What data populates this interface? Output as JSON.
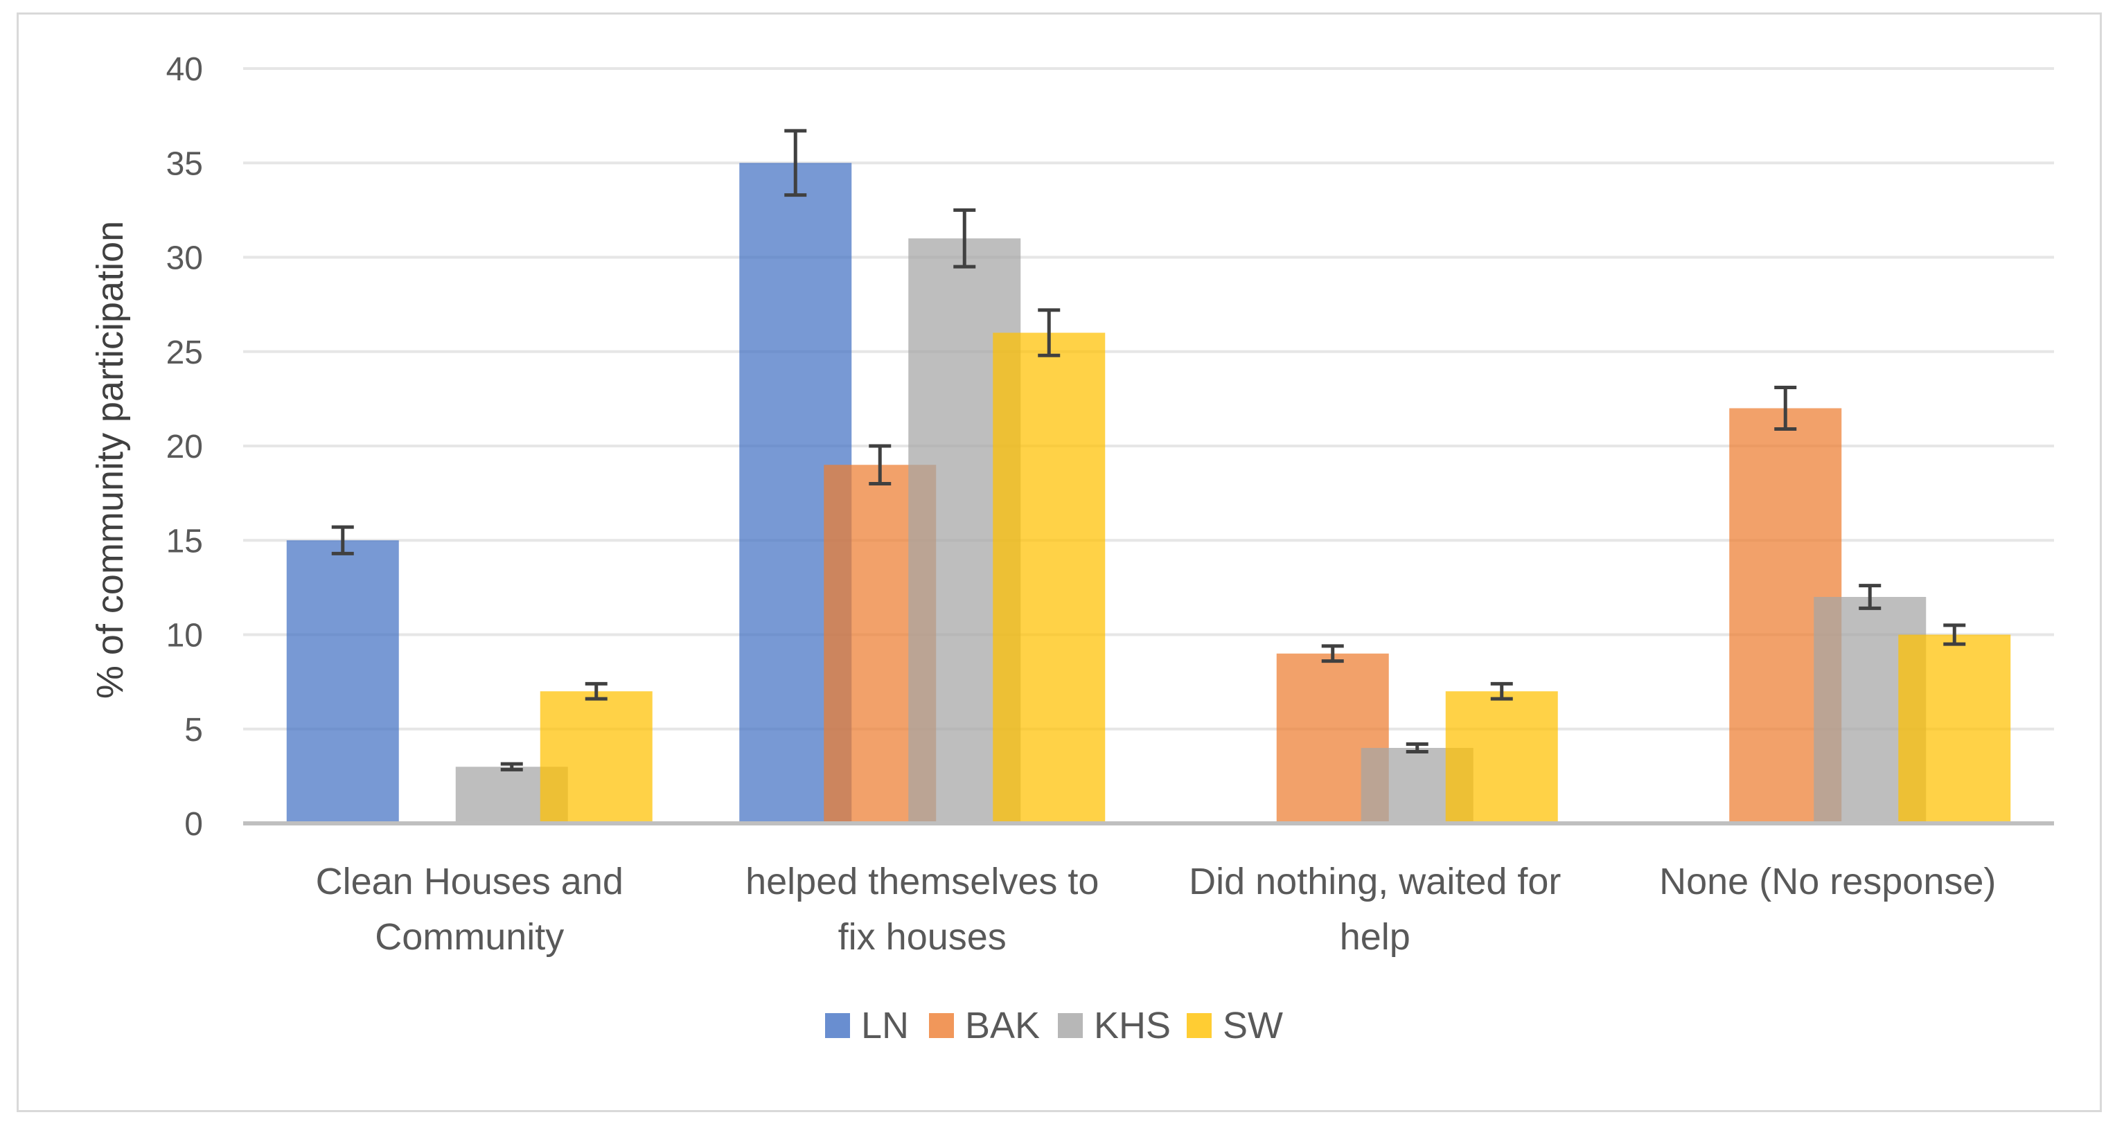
{
  "chart_data": {
    "type": "bar",
    "title": "",
    "xlabel": "",
    "ylabel": "% of community participation",
    "ylim": [
      0,
      40
    ],
    "yticks": [
      0,
      5,
      10,
      15,
      20,
      25,
      30,
      35,
      40
    ],
    "grid": true,
    "legend_position": "bottom",
    "categories": [
      [
        "Clean Houses and",
        "Community"
      ],
      [
        "helped themselves to",
        "fix houses"
      ],
      [
        "Did nothing, waited for",
        "help"
      ],
      [
        "None (No response)"
      ]
    ],
    "series": [
      {
        "name": "LN",
        "color": "#4472C4",
        "values": [
          15,
          35,
          null,
          null
        ],
        "errors": [
          0.7,
          1.7,
          null,
          null
        ]
      },
      {
        "name": "BAK",
        "color": "#ED7D31",
        "values": [
          null,
          19,
          9,
          22
        ],
        "errors": [
          null,
          1.0,
          0.4,
          1.1
        ]
      },
      {
        "name": "KHS",
        "color": "#A5A5A5",
        "values": [
          3,
          31,
          4,
          12
        ],
        "errors": [
          0.15,
          1.5,
          0.2,
          0.6
        ]
      },
      {
        "name": "SW",
        "color": "#FFC000",
        "values": [
          7,
          26,
          7,
          10
        ],
        "errors": [
          0.4,
          1.2,
          0.4,
          0.5
        ]
      }
    ]
  }
}
